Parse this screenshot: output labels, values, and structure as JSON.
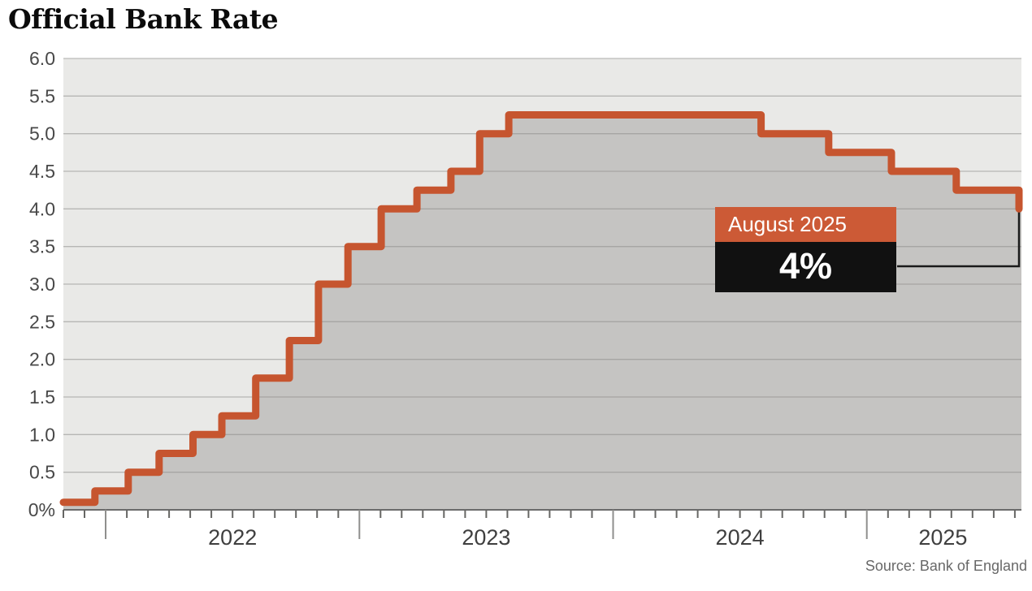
{
  "title": "Official Bank Rate",
  "source": "Source: Bank of England",
  "annotation": {
    "label": "August 2025",
    "value": "4%"
  },
  "colors": {
    "line": "#c6552f",
    "area_fill": "#c5c4c2",
    "plot_bg": "#e9e9e7",
    "grid": "#8c8c8a",
    "axis": "#6b6b6b",
    "tick": "#666664",
    "year_tick": "#8f8f8d",
    "tick_label": "#484848",
    "year_label": "#3f3f3f",
    "annotation_label_bg": "#cc5a36",
    "annotation_value_bg": "#111111",
    "connector": "#1a1a1a"
  },
  "chart_data": {
    "type": "area",
    "subtype": "step-after",
    "title": "Official Bank Rate",
    "ylabel": "%",
    "ylim": [
      0,
      6
    ],
    "ytick_step": 0.5,
    "ytick_labels": [
      "0%",
      "0.5",
      "1.0",
      "1.5",
      "2.0",
      "2.5",
      "3.0",
      "3.5",
      "4.0",
      "4.5",
      "5.0",
      "5.5",
      "6.0"
    ],
    "x_start": "2021-11-01",
    "x_end": "2025-08-07",
    "start_rate": 0.1,
    "changes": [
      {
        "date": "2021-12-16",
        "rate": 0.25
      },
      {
        "date": "2022-02-03",
        "rate": 0.5
      },
      {
        "date": "2022-03-17",
        "rate": 0.75
      },
      {
        "date": "2022-05-05",
        "rate": 1.0
      },
      {
        "date": "2022-06-16",
        "rate": 1.25
      },
      {
        "date": "2022-08-04",
        "rate": 1.75
      },
      {
        "date": "2022-09-22",
        "rate": 2.25
      },
      {
        "date": "2022-11-03",
        "rate": 3.0
      },
      {
        "date": "2022-12-15",
        "rate": 3.5
      },
      {
        "date": "2023-02-02",
        "rate": 4.0
      },
      {
        "date": "2023-03-23",
        "rate": 4.25
      },
      {
        "date": "2023-05-11",
        "rate": 4.5
      },
      {
        "date": "2023-06-22",
        "rate": 5.0
      },
      {
        "date": "2023-08-03",
        "rate": 5.25
      },
      {
        "date": "2024-08-01",
        "rate": 5.0
      },
      {
        "date": "2024-11-07",
        "rate": 4.75
      },
      {
        "date": "2025-02-06",
        "rate": 4.5
      },
      {
        "date": "2025-05-08",
        "rate": 4.25
      },
      {
        "date": "2025-08-07",
        "rate": 4.0
      }
    ],
    "year_labels": [
      "2022",
      "2023",
      "2024",
      "2025"
    ],
    "final_point": {
      "label": "August 2025",
      "rate_label": "4%",
      "rate": 4.0
    },
    "grid": true,
    "legend": "none"
  }
}
